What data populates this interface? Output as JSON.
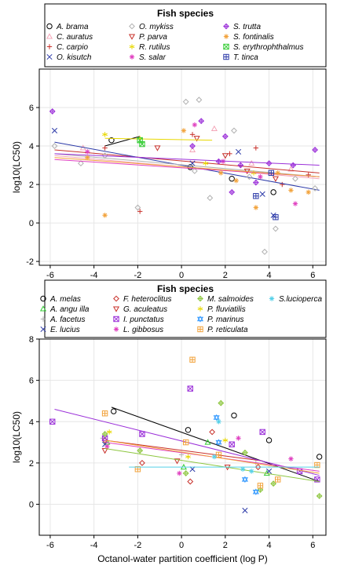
{
  "chart_data": [
    {
      "type": "scatter",
      "legend_title": "Fish species",
      "legend_position": "top",
      "ylabel": "log10(LC50)",
      "xlabel": "",
      "xlim": [
        -6.5,
        6.6
      ],
      "ylim": [
        -2.2,
        8.0
      ],
      "x_ticks": [
        -6,
        -4,
        -2,
        0,
        2,
        4,
        6
      ],
      "y_ticks": [
        -2,
        0,
        2,
        4,
        6
      ],
      "grid": true,
      "series": [
        {
          "name": "A. brama",
          "color": "#000000",
          "marker": "circle",
          "x": [
            -3.2,
            0.4,
            2.3,
            4.2
          ],
          "y": [
            4.3,
            2.9,
            2.3,
            1.6
          ],
          "fit": [
            [
              -3.5,
              4.0
            ],
            [
              -1.9,
              4.5
            ]
          ]
        },
        {
          "name": "C. auratus",
          "color": "#f4a7b9",
          "marker": "triangle",
          "x": [
            -4.5,
            0.5,
            1.5,
            3.2,
            5.0
          ],
          "y": [
            3.9,
            3.8,
            4.9,
            3.1,
            2.8
          ],
          "fit": [
            [
              -5.8,
              3.5
            ],
            [
              6.3,
              2.3
            ]
          ]
        },
        {
          "name": "C. carpio",
          "color": "#c8302a",
          "marker": "plus",
          "x": [
            -3.5,
            -1.9,
            0.5,
            2.2,
            3.4,
            4.6,
            5.8
          ],
          "y": [
            3.9,
            0.6,
            4.6,
            3.6,
            3.9,
            2.0,
            2.5
          ],
          "fit": [
            [
              -5.8,
              3.8
            ],
            [
              6.3,
              2.6
            ]
          ]
        },
        {
          "name": "O. kisutch",
          "color": "#2c3aa8",
          "marker": "x",
          "x": [
            -5.8,
            0.5,
            2.6,
            3.7,
            4.2
          ],
          "y": [
            4.8,
            3.1,
            3.7,
            1.5,
            0.4
          ],
          "fit": [
            [
              -5.8,
              4.2
            ],
            [
              6.3,
              1.7
            ]
          ]
        },
        {
          "name": "O. mykiss",
          "color": "#b0b0b0",
          "marker": "diamond",
          "x": [
            -5.8,
            -4.6,
            -3.5,
            -2.0,
            0.2,
            0.6,
            0.8,
            1.3,
            2.4,
            3.1,
            3.8,
            4.3,
            5.2,
            6.1
          ],
          "y": [
            4.0,
            3.1,
            3.5,
            0.8,
            6.3,
            2.7,
            6.4,
            1.3,
            4.8,
            2.4,
            -1.5,
            -0.3,
            2.3,
            1.8
          ],
          "fit": [
            [
              -5.8,
              3.6
            ],
            [
              6.3,
              2.4
            ]
          ]
        },
        {
          "name": "P. parva",
          "color": "#c8302a",
          "marker": "triangle-down",
          "x": [
            -1.1,
            0.7,
            2.0,
            3.0,
            4.3
          ],
          "y": [
            3.9,
            4.4,
            3.5,
            2.7,
            2.3
          ]
        },
        {
          "name": "R. rutilus",
          "color": "#e8d800",
          "marker": "star",
          "x": [
            -3.5,
            -1.9,
            1.1,
            3.3
          ],
          "y": [
            4.6,
            4.4,
            3.1,
            2.6
          ],
          "fit": [
            [
              -3.5,
              4.4
            ],
            [
              1.4,
              4.3
            ]
          ]
        },
        {
          "name": "S. salar",
          "color": "#e040c0",
          "marker": "asterisk",
          "x": [
            -4.3,
            0.6,
            1.9,
            3.6,
            5.2
          ],
          "y": [
            3.7,
            5.1,
            3.2,
            2.4,
            1.0
          ],
          "fit": [
            [
              -5.8,
              3.3
            ],
            [
              6.3,
              2.4
            ]
          ]
        },
        {
          "name": "S. trutta",
          "color": "#9b30d9",
          "marker": "diamond-plus",
          "x": [
            -5.9,
            0.5,
            0.9,
            1.7,
            2.0,
            2.3,
            2.7,
            3.4,
            4.0,
            5.1,
            6.1
          ],
          "y": [
            5.8,
            4.0,
            5.3,
            3.2,
            4.5,
            1.6,
            3.0,
            2.1,
            3.1,
            3.0,
            3.8
          ],
          "fit": [
            [
              -5.8,
              3.6
            ],
            [
              6.3,
              3.0
            ]
          ]
        },
        {
          "name": "S. fontinalis",
          "color": "#f2a23a",
          "marker": "asterisk",
          "x": [
            -4.3,
            -3.5,
            0.1,
            1.8,
            2.5,
            3.4,
            4.4,
            5.0,
            5.8
          ],
          "y": [
            3.4,
            0.4,
            4.8,
            2.6,
            2.2,
            0.8,
            2.6,
            1.7,
            1.6
          ],
          "fit": [
            [
              -5.8,
              3.4
            ],
            [
              6.3,
              2.4
            ]
          ]
        },
        {
          "name": "S. erythrophthalmus",
          "color": "#33cc33",
          "marker": "square-x",
          "x": [
            -1.9,
            -1.8
          ],
          "y": [
            4.3,
            4.1
          ]
        },
        {
          "name": "T. tinca",
          "color": "#2c3aa8",
          "marker": "square-plus",
          "x": [
            3.4,
            4.1,
            4.3
          ],
          "y": [
            1.4,
            2.6,
            0.3
          ]
        }
      ]
    },
    {
      "type": "scatter",
      "legend_title": "Fish species",
      "legend_position": "top",
      "ylabel": "log10(LC50)",
      "xlabel": "Octanol-water partition coefficient (log P)",
      "xlim": [
        -6.5,
        6.6
      ],
      "ylim": [
        -1.5,
        8.0
      ],
      "x_ticks": [
        -6,
        -4,
        -2,
        0,
        2,
        4,
        6
      ],
      "y_ticks": [
        0,
        2,
        4,
        6,
        8
      ],
      "grid": true,
      "series": [
        {
          "name": "A. melas",
          "color": "#000000",
          "marker": "circle",
          "x": [
            -3.1,
            0.3,
            2.4,
            4.0,
            6.3
          ],
          "y": [
            4.5,
            3.6,
            4.3,
            3.1,
            2.3
          ],
          "fit": [
            [
              -3.2,
              4.7
            ],
            [
              6.3,
              1.1
            ]
          ]
        },
        {
          "name": "A. angu illa",
          "color": "#33cc33",
          "marker": "triangle",
          "x": [
            -3.4,
            0.1,
            1.2,
            3.9
          ],
          "y": [
            3.0,
            1.8,
            3.0,
            1.5
          ]
        },
        {
          "name": "A. facetus",
          "color": "#b0b0b0",
          "marker": "plus",
          "x": [
            -3.6,
            0.0,
            3.4
          ],
          "y": [
            3.2,
            2.4,
            2.0
          ]
        },
        {
          "name": "E. lucius",
          "color": "#2c3aa8",
          "marker": "x",
          "x": [
            -3.5,
            0.5,
            2.9,
            4.0
          ],
          "y": [
            2.9,
            1.7,
            -0.3,
            1.6
          ]
        },
        {
          "name": "F. heteroclitus",
          "color": "#c8302a",
          "marker": "diamond",
          "x": [
            -3.5,
            -1.8,
            0.4,
            1.4,
            3.5
          ],
          "y": [
            3.1,
            2.0,
            1.1,
            3.5,
            1.8
          ],
          "fit": [
            [
              -3.5,
              3.1
            ],
            [
              3.7,
              2.1
            ]
          ]
        },
        {
          "name": "G. aculeatus",
          "color": "#c8302a",
          "marker": "triangle-down",
          "x": [
            -3.5,
            -0.2,
            2.1
          ],
          "y": [
            2.6,
            2.1,
            1.8
          ]
        },
        {
          "name": "I. punctatus",
          "color": "#9b30d9",
          "marker": "square-x",
          "x": [
            -5.9,
            -3.5,
            -1.8,
            0.4,
            2.3,
            3.7,
            5.4,
            6.2
          ],
          "y": [
            4.0,
            3.2,
            3.4,
            5.6,
            2.9,
            3.5,
            1.6,
            1.2
          ],
          "fit": [
            [
              -5.8,
              4.6
            ],
            [
              6.3,
              1.4
            ]
          ]
        },
        {
          "name": "L. gibbosus",
          "color": "#e040c0",
          "marker": "asterisk",
          "x": [
            -3.4,
            -0.1,
            2.6,
            5.0
          ],
          "y": [
            2.8,
            1.5,
            3.2,
            2.2
          ],
          "fit": [
            [
              -3.5,
              3.0
            ],
            [
              6.3,
              1.6
            ]
          ]
        },
        {
          "name": "M. salmoides",
          "color": "#8dc63f",
          "marker": "diamond-plus",
          "x": [
            -3.5,
            -1.9,
            0.2,
            1.8,
            2.9,
            3.6,
            4.2,
            6.3
          ],
          "y": [
            3.4,
            2.6,
            1.5,
            4.9,
            2.5,
            0.7,
            1.0,
            0.4
          ],
          "fit": [
            [
              -3.5,
              2.7
            ],
            [
              6.3,
              1.1
            ]
          ]
        },
        {
          "name": "P. fluviatilis",
          "color": "#e8d800",
          "marker": "star",
          "x": [
            -3.3,
            0.3,
            2.0
          ],
          "y": [
            3.5,
            2.3,
            3.1
          ]
        },
        {
          "name": "P. marinus",
          "color": "#3399ff",
          "marker": "triangle-star",
          "x": [
            1.6,
            1.7,
            2.9,
            3.4
          ],
          "y": [
            4.2,
            3.0,
            1.2,
            0.6
          ]
        },
        {
          "name": "P. reticulata",
          "color": "#f2a23a",
          "marker": "square-plus",
          "x": [
            -3.5,
            -2.0,
            0.2,
            0.5,
            1.7,
            3.6,
            4.4,
            6.2
          ],
          "y": [
            4.4,
            1.7,
            3.0,
            7.0,
            2.4,
            0.9,
            1.2,
            1.9
          ],
          "fit": [
            [
              -3.5,
              3.1
            ],
            [
              6.3,
              1.5
            ]
          ]
        },
        {
          "name": "S.lucioperca",
          "color": "#55d0e8",
          "marker": "asterisk",
          "x": [
            1.5,
            1.7,
            2.8,
            3.2
          ],
          "y": [
            2.3,
            4.0,
            1.7,
            1.6
          ],
          "fit": [
            [
              -2.4,
              1.8
            ],
            [
              6.3,
              1.8
            ]
          ]
        }
      ]
    }
  ]
}
